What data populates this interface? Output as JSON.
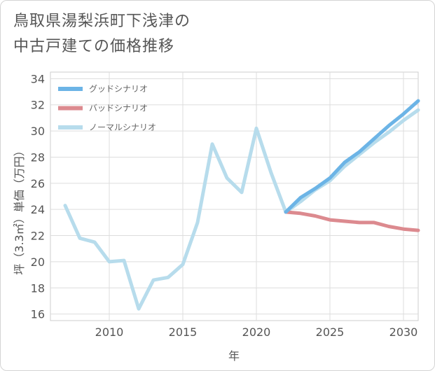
{
  "title_lines": [
    "鳥取県湯梨浜町下浅津の",
    "中古戸建ての価格推移"
  ],
  "chart_data": {
    "type": "line",
    "title": "鳥取県湯梨浜町下浅津の中古戸建ての価格推移",
    "xlabel": "年",
    "ylabel": "坪（3.3㎡）単価（万円）",
    "xlim": [
      2006,
      2031
    ],
    "ylim": [
      15.5,
      34.5
    ],
    "x_ticks": [
      2010,
      2015,
      2020,
      2025,
      2030
    ],
    "y_ticks": [
      16,
      18,
      20,
      22,
      24,
      26,
      28,
      30,
      32,
      34
    ],
    "grid": true,
    "legend_position": "top-left",
    "series": [
      {
        "name": "グッドシナリオ",
        "color": "#6cb4e6",
        "x": [
          2022,
          2023,
          2024,
          2025,
          2026,
          2027,
          2028,
          2029,
          2030,
          2031
        ],
        "y": [
          23.8,
          24.9,
          25.6,
          26.4,
          27.6,
          28.4,
          29.4,
          30.4,
          31.3,
          32.3
        ]
      },
      {
        "name": "バッドシナリオ",
        "color": "#dc8a8f",
        "x": [
          2022,
          2023,
          2024,
          2025,
          2026,
          2027,
          2028,
          2029,
          2030,
          2031
        ],
        "y": [
          23.8,
          23.7,
          23.5,
          23.2,
          23.1,
          23.0,
          23.0,
          22.7,
          22.5,
          22.4
        ]
      },
      {
        "name": "ノーマルシナリオ",
        "color": "#b7dcec",
        "x": [
          2007,
          2008,
          2009,
          2010,
          2011,
          2012,
          2013,
          2014,
          2015,
          2016,
          2017,
          2018,
          2019,
          2020,
          2021,
          2022,
          2023,
          2024,
          2025,
          2026,
          2027,
          2028,
          2029,
          2030,
          2031
        ],
        "y": [
          24.3,
          21.8,
          21.5,
          20.0,
          20.1,
          16.4,
          18.6,
          18.8,
          19.8,
          23.0,
          29.0,
          26.4,
          25.3,
          30.2,
          26.8,
          23.8,
          24.6,
          25.5,
          26.2,
          27.3,
          28.2,
          29.1,
          29.9,
          30.8,
          31.6
        ]
      }
    ]
  }
}
